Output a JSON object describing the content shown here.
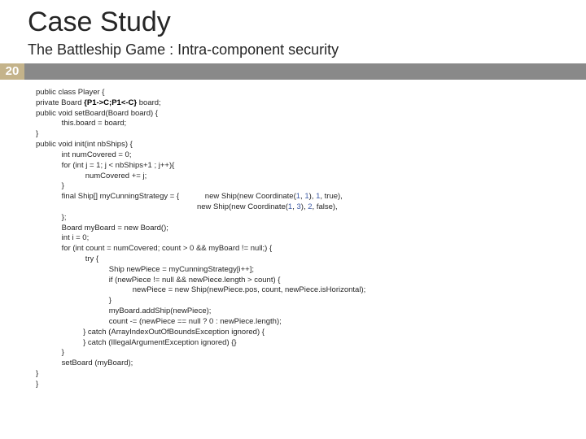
{
  "title": "Case Study",
  "subtitle": "The Battleship Game : Intra-component security",
  "badge": "20",
  "code": {
    "l01": "public class Player {",
    "l02": "private Board ",
    "l02h": "{P1->C;P1<-C}",
    "l02b": " board;",
    "l03": "public void setBoard(Board board) {",
    "l04": "            this.board = board;",
    "l05": "}",
    "l06": "public void init(int nbShips) {",
    "l07": "            int numCovered = 0;",
    "l08": "            for (int j = 1; j < nbShips+1 ; j++){",
    "l09": "                       numCovered += j;",
    "l10": "            }",
    "l11a": "            final Ship[] myCunningStrategy = {",
    "l11b": "new Ship(new Coordinate(",
    "l11c": ", ",
    "l11d": "), ",
    "l11e": ", true),",
    "l12a": "new Ship(new Coordinate(",
    "l12b": ", ",
    "l12c": "), ",
    "l12d": ", false),",
    "n1": "1",
    "n3": "3",
    "n2": "2",
    "l13": "            };",
    "l14": "            Board myBoard = new Board();",
    "l15": "            int i = 0;",
    "l16": "            for (int count = numCovered; count > 0 && myBoard != null;) {",
    "l17": "                       try {",
    "l18": "                                  Ship newPiece = myCunningStrategy[i++];",
    "l19": "                                  if (newPiece != null && newPiece.length > count) {",
    "l20": "                                             newPiece = new Ship(newPiece.pos, count, newPiece.isHorizontal);",
    "l21": "                                  }",
    "l22": "                                  myBoard.addShip(newPiece);",
    "l23": "                                  count -= (newPiece == null ? 0 : newPiece.length);",
    "l24": "                      } catch (ArrayIndexOutOfBoundsException ignored) {",
    "l25": "                      } catch (IllegalArgumentException ignored) {}",
    "l26": "            }",
    "l27": "            setBoard (myBoard);",
    "l28": "}",
    "l29": "}"
  }
}
